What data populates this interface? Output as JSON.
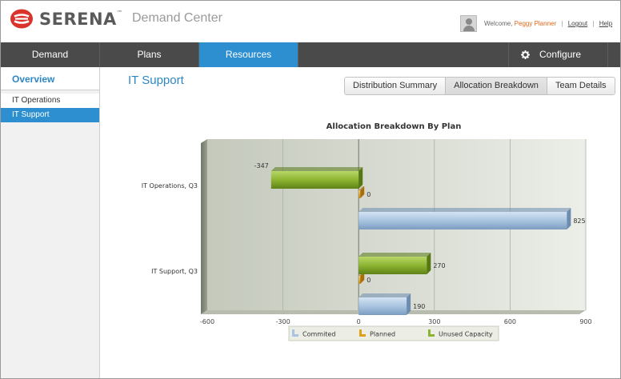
{
  "header": {
    "brand": "SERENA",
    "brand_mark": "™",
    "product": "Demand Center",
    "welcome_prefix": "Welcome,",
    "user_name": "Peggy Planner",
    "logout": "Logout",
    "help": "Help",
    "separator": "|"
  },
  "nav": {
    "tabs": [
      {
        "label": "Demand"
      },
      {
        "label": "Plans"
      },
      {
        "label": "Resources"
      }
    ],
    "configure": "Configure"
  },
  "sidebar": {
    "title": "Overview",
    "items": [
      {
        "label": "IT Operations"
      },
      {
        "label": "IT Support"
      }
    ]
  },
  "main": {
    "title": "IT Support",
    "tabs": [
      {
        "label": "Distribution Summary"
      },
      {
        "label": "Allocation Breakdown"
      },
      {
        "label": "Team Details"
      }
    ]
  },
  "colors": {
    "accent": "#2d8fd0",
    "nav_bg": "#4a4a4a",
    "committed": "#a9c4e0",
    "planned": "#e2a019",
    "unused": "#8db431"
  },
  "chart_data": {
    "type": "bar",
    "orientation": "horizontal",
    "title": "Allocation Breakdown By Plan",
    "categories": [
      "IT Operations, Q3",
      "IT Support, Q3"
    ],
    "series": [
      {
        "name": "Commited",
        "values": [
          825,
          190
        ]
      },
      {
        "name": "Planned",
        "values": [
          0,
          0
        ]
      },
      {
        "name": "Unused Capacity",
        "values": [
          -347,
          270
        ]
      }
    ],
    "xlim": [
      -600,
      900
    ],
    "xticks": [
      -600,
      -300,
      0,
      300,
      600,
      900
    ],
    "grid": true,
    "legend_position": "bottom"
  }
}
